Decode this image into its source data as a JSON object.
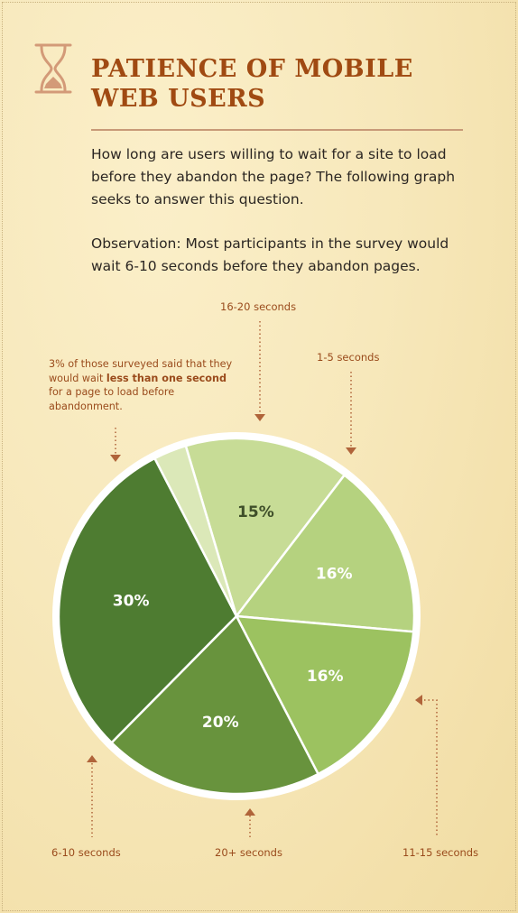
{
  "header": {
    "title_line1": "PATIENCE OF MOBILE",
    "title_line2": "WEB USERS",
    "icon": "hourglass-icon"
  },
  "intro": "How long are users willing to wait for a site to load before they abandon the page? The following graph seeks to answer this question.",
  "observation": "Observation: Most participants in the survey would wait 6-10 seconds before they abandon pages.",
  "annotation": {
    "part1": "3% of those surveyed said that they would wait ",
    "bold1": "less than one second",
    "part2": " for a page to load before abandonment."
  },
  "colors": {
    "title": "#a04a12",
    "label": "#9a4b1c",
    "border": "#ffffff"
  },
  "chart_data": {
    "type": "pie",
    "slices": [
      {
        "label": "16-20 seconds",
        "value": 15,
        "value_label": "15%",
        "color": "#c7dc96",
        "text_color": "#3f4f2a"
      },
      {
        "label": "1-5 seconds",
        "value": 16,
        "value_label": "16%",
        "color": "#b5d27f",
        "text_color": "#ffffff"
      },
      {
        "label": "11-15 seconds",
        "value": 16,
        "value_label": "16%",
        "color": "#9cc260",
        "text_color": "#ffffff"
      },
      {
        "label": "20+ seconds",
        "value": 20,
        "value_label": "20%",
        "color": "#68933d",
        "text_color": "#ffffff"
      },
      {
        "label": "6-10 seconds",
        "value": 30,
        "value_label": "30%",
        "color": "#4e7c31",
        "text_color": "#ffffff"
      },
      {
        "label": "less than one second",
        "value": 3,
        "value_label": "",
        "color": "#dbe8b8",
        "text_color": "#ffffff"
      }
    ]
  }
}
